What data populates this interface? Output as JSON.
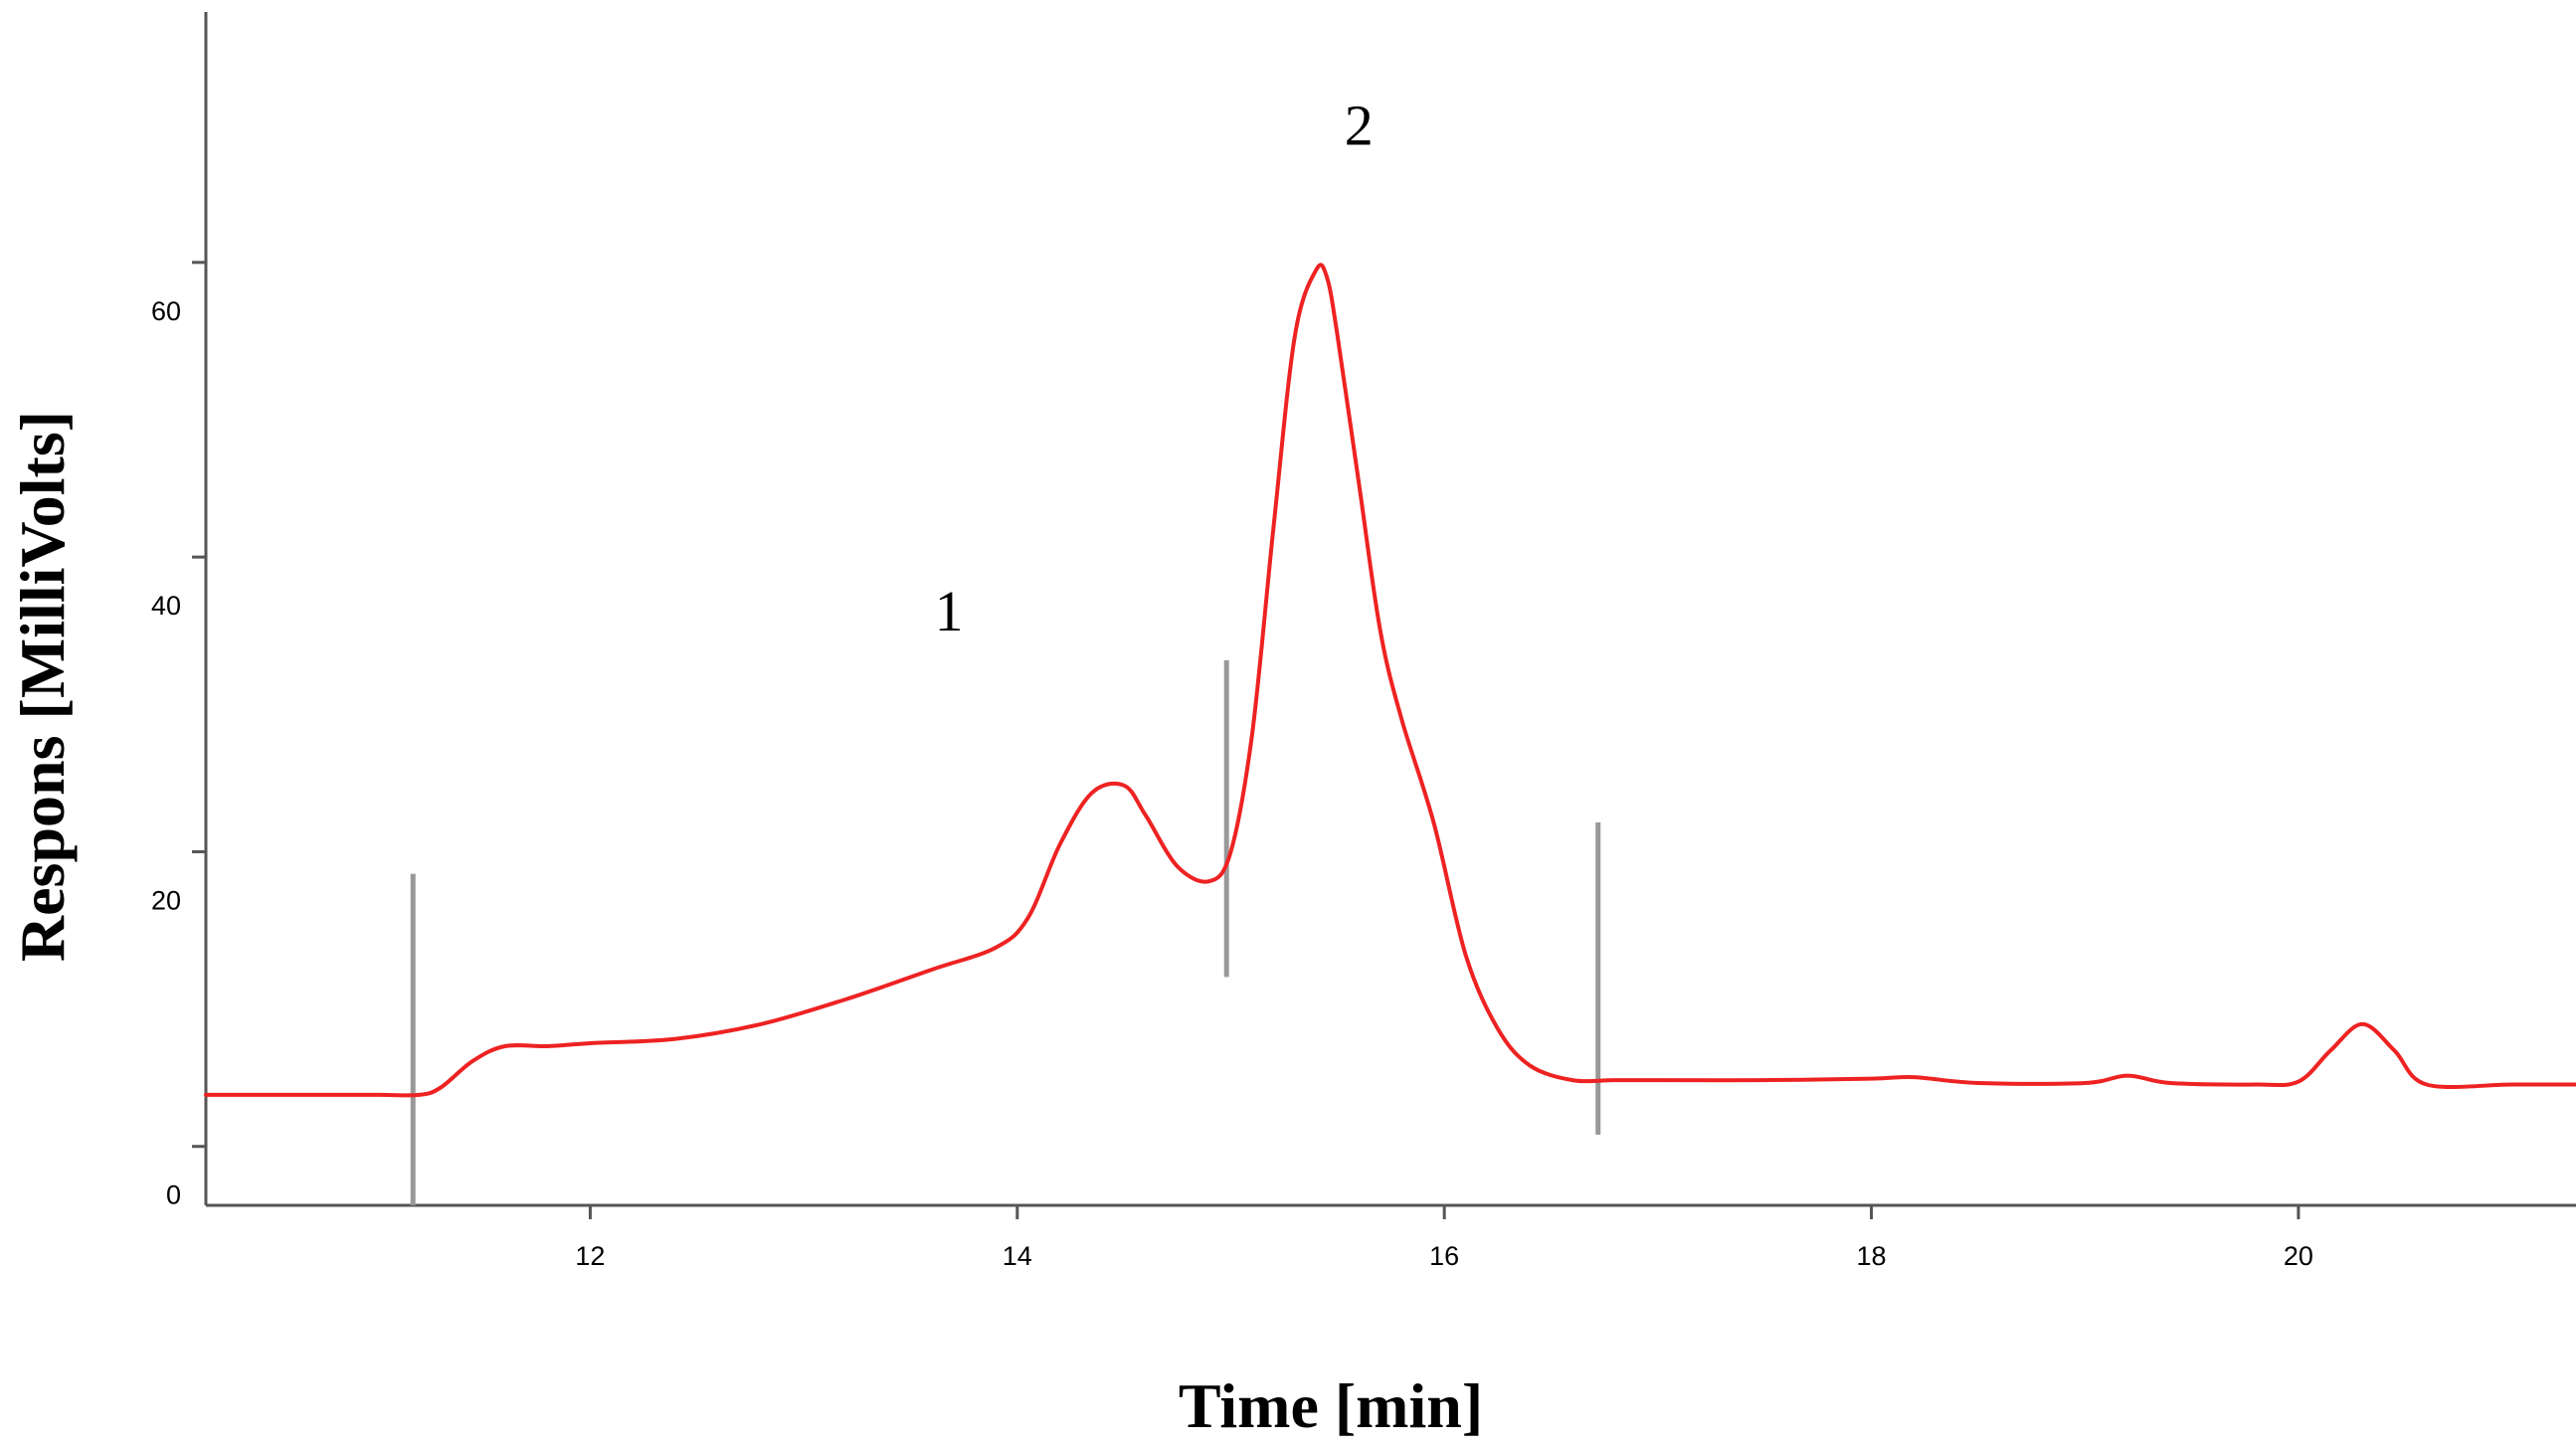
{
  "chart_data": {
    "type": "line",
    "title": "",
    "xlabel": "Time [min]",
    "ylabel": "Respons [MilliVolts]",
    "xlim": [
      10.2,
      21.3
    ],
    "ylim": [
      -4,
      77
    ],
    "grid": false,
    "legend": "none",
    "x_ticks": [
      12,
      14,
      16,
      18,
      20
    ],
    "y_ticks": [
      0,
      20,
      40,
      60
    ],
    "x_tick_labels": [
      "12",
      "14",
      "16",
      "18",
      "20"
    ],
    "y_tick_labels": [
      "0",
      "20",
      "40",
      "60"
    ],
    "series": [
      {
        "color": "#ee2222",
        "x": [
          10.2,
          10.6,
          11.0,
          11.2,
          11.3,
          11.45,
          11.6,
          11.8,
          12.0,
          12.4,
          12.8,
          13.2,
          13.6,
          13.9,
          14.05,
          14.2,
          14.35,
          14.5,
          14.6,
          14.75,
          14.9,
          15.0,
          15.1,
          15.2,
          15.3,
          15.4,
          15.45,
          15.5,
          15.6,
          15.7,
          15.8,
          15.95,
          16.1,
          16.25,
          16.4,
          16.6,
          16.8,
          17.0,
          17.5,
          18.0,
          18.2,
          18.5,
          19.0,
          19.2,
          19.4,
          19.8,
          20.0,
          20.15,
          20.3,
          20.45,
          20.6,
          21.0,
          21.3
        ],
        "y": [
          3.5,
          3.5,
          3.5,
          3.5,
          4.0,
          5.8,
          6.8,
          6.8,
          7.0,
          7.3,
          8.3,
          10.0,
          12.0,
          13.5,
          15.5,
          20.5,
          24.0,
          24.5,
          22.5,
          19.0,
          18.0,
          20.0,
          28.0,
          42.0,
          55.0,
          59.5,
          59.0,
          55.0,
          45.0,
          35.0,
          29.0,
          22.0,
          13.0,
          8.0,
          5.5,
          4.5,
          4.5,
          4.5,
          4.5,
          4.6,
          4.7,
          4.3,
          4.3,
          4.8,
          4.3,
          4.2,
          4.4,
          6.5,
          8.3,
          6.5,
          4.2,
          4.2,
          4.2
        ]
      }
    ],
    "vertical_markers": [
      {
        "x": 11.17,
        "y_from": -4,
        "y_to": 18.5
      },
      {
        "x": 14.98,
        "y_from": 11.5,
        "y_to": 33.0
      },
      {
        "x": 16.72,
        "y_from": 0.8,
        "y_to": 22.0
      }
    ],
    "annotations": [
      {
        "text": "1",
        "x": 13.68,
        "y": 35.0
      },
      {
        "text": "2",
        "x": 15.6,
        "y": 68.0
      }
    ]
  }
}
